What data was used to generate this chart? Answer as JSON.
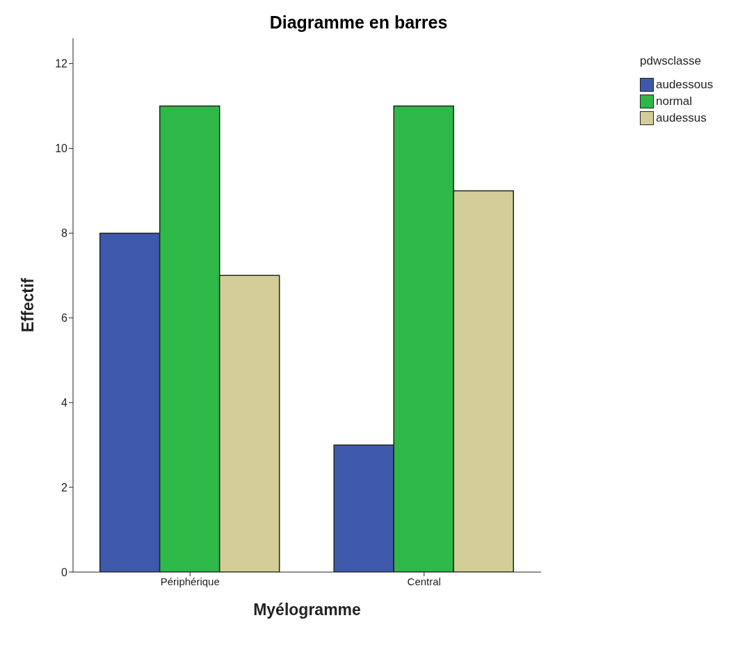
{
  "chart_data": {
    "type": "bar",
    "title": "Diagramme en barres",
    "xlabel": "Myélogramme",
    "ylabel": "Effectif",
    "legend_title": "pdwsclasse",
    "categories": [
      "Périphérique",
      "Central"
    ],
    "series": [
      {
        "name": "audessous",
        "color": "#3e58ac",
        "values": [
          8,
          3
        ]
      },
      {
        "name": "normal",
        "color": "#2eb848",
        "values": [
          11,
          11
        ]
      },
      {
        "name": "audessus",
        "color": "#d3ce97",
        "values": [
          7,
          9
        ]
      }
    ],
    "ylim": [
      0,
      12.6
    ],
    "yticks": [
      0,
      2,
      4,
      6,
      8,
      10,
      12
    ],
    "grid": false,
    "legend": "top right"
  }
}
